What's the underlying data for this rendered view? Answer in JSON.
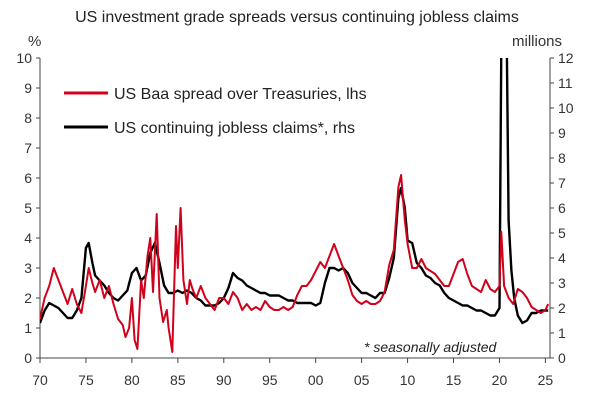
{
  "chart_data": {
    "type": "line",
    "title": "US investment grade spreads versus continuing jobless claims",
    "ylabel_left": "%",
    "ylabel_right": "millions",
    "xlim": [
      1970,
      2025.5
    ],
    "ylim_left": [
      0,
      10
    ],
    "ylim_right": [
      0,
      12
    ],
    "x_ticks": [
      1970,
      1975,
      1980,
      1985,
      1990,
      1995,
      2000,
      2005,
      2010,
      2015,
      2020,
      2025
    ],
    "x_tick_labels": [
      "70",
      "75",
      "80",
      "85",
      "90",
      "95",
      "00",
      "05",
      "10",
      "15",
      "20",
      "25"
    ],
    "y_left_ticks": [
      0,
      1,
      2,
      3,
      4,
      5,
      6,
      7,
      8,
      9,
      10
    ],
    "y_right_ticks": [
      0,
      1,
      2,
      3,
      4,
      5,
      6,
      7,
      8,
      9,
      10,
      11,
      12
    ],
    "grid": false,
    "legend": "top-left",
    "annotation": "* seasonally adjusted",
    "series": [
      {
        "name": "US Baa spread over Treasuries, lhs",
        "axis": "left",
        "color": "#d0021b",
        "x": [
          1970,
          1970.5,
          1971,
          1971.5,
          1972,
          1972.5,
          1973,
          1973.5,
          1974,
          1974.5,
          1975,
          1975.3,
          1975.7,
          1976,
          1976.5,
          1977,
          1977.5,
          1978,
          1978.5,
          1979,
          1979.3,
          1979.7,
          1980,
          1980.3,
          1980.6,
          1981,
          1981.3,
          1981.7,
          1982,
          1982.3,
          1982.7,
          1983,
          1983.4,
          1983.8,
          1984,
          1984.4,
          1984.8,
          1985,
          1985.3,
          1985.6,
          1986,
          1986.3,
          1986.6,
          1987,
          1987.5,
          1988,
          1988.5,
          1989,
          1989.5,
          1990,
          1990.5,
          1991,
          1991.5,
          1992,
          1992.5,
          1993,
          1993.5,
          1994,
          1994.5,
          1995,
          1995.5,
          1996,
          1996.5,
          1997,
          1997.5,
          1998,
          1998.5,
          1999,
          1999.5,
          2000,
          2000.5,
          2001,
          2001.5,
          2002,
          2002.5,
          2003,
          2003.5,
          2004,
          2004.5,
          2005,
          2005.5,
          2006,
          2006.5,
          2007,
          2007.5,
          2008,
          2008.5,
          2009,
          2009.3,
          2009.7,
          2010,
          2010.5,
          2011,
          2011.5,
          2012,
          2012.5,
          2013,
          2013.5,
          2014,
          2014.5,
          2015,
          2015.5,
          2016,
          2016.5,
          2017,
          2017.5,
          2018,
          2018.5,
          2019,
          2019.5,
          2020,
          2020.2,
          2020.5,
          2021,
          2021.5,
          2022,
          2022.5,
          2023,
          2023.5,
          2024,
          2024.5,
          2025,
          2025.3
        ],
        "y": [
          1.3,
          2.0,
          2.4,
          3.0,
          2.6,
          2.2,
          1.8,
          2.3,
          1.8,
          1.5,
          2.4,
          3.0,
          2.5,
          2.2,
          2.6,
          2.0,
          2.4,
          1.8,
          1.3,
          1.1,
          0.7,
          1.0,
          2.0,
          0.6,
          0.3,
          2.6,
          2.0,
          3.4,
          4.0,
          2.2,
          4.8,
          2.0,
          1.2,
          1.6,
          1.0,
          0.2,
          4.4,
          3.0,
          5.0,
          2.6,
          1.8,
          2.6,
          2.3,
          2.0,
          2.4,
          2.0,
          1.8,
          1.6,
          2.0,
          2.0,
          1.8,
          2.2,
          2.0,
          1.6,
          1.8,
          1.6,
          1.7,
          1.6,
          1.9,
          1.7,
          1.6,
          1.6,
          1.7,
          1.6,
          1.7,
          2.1,
          2.4,
          2.4,
          2.6,
          2.9,
          3.2,
          3.0,
          3.4,
          3.8,
          3.4,
          3.0,
          2.6,
          2.1,
          1.9,
          1.8,
          1.9,
          1.8,
          1.8,
          1.9,
          2.2,
          3.1,
          3.6,
          5.7,
          6.1,
          4.6,
          3.8,
          3.0,
          3.0,
          3.3,
          3.0,
          2.9,
          2.8,
          2.6,
          2.4,
          2.4,
          2.8,
          3.2,
          3.3,
          2.8,
          2.4,
          2.3,
          2.2,
          2.6,
          2.3,
          2.2,
          2.4,
          4.2,
          2.4,
          2.0,
          1.8,
          2.3,
          2.2,
          2.0,
          1.7,
          1.6,
          1.5,
          1.6,
          1.8
        ]
      },
      {
        "name": "US continuing jobless claims*, rhs",
        "axis": "right",
        "color": "#000000",
        "x": [
          1970,
          1970.5,
          1971,
          1971.5,
          1972,
          1972.5,
          1973,
          1973.5,
          1974,
          1974.5,
          1975,
          1975.3,
          1975.7,
          1976,
          1976.5,
          1977,
          1977.5,
          1978,
          1978.5,
          1979,
          1979.5,
          1980,
          1980.5,
          1981,
          1981.5,
          1982,
          1982.5,
          1983,
          1983.5,
          1984,
          1984.5,
          1985,
          1985.5,
          1986,
          1986.5,
          1987,
          1987.5,
          1988,
          1988.5,
          1989,
          1989.5,
          1990,
          1990.5,
          1991,
          1991.5,
          1992,
          1992.5,
          1993,
          1993.5,
          1994,
          1994.5,
          1995,
          1995.5,
          1996,
          1996.5,
          1997,
          1997.5,
          1998,
          1998.5,
          1999,
          1999.5,
          2000,
          2000.5,
          2001,
          2001.5,
          2002,
          2002.5,
          2003,
          2003.5,
          2004,
          2004.5,
          2005,
          2005.5,
          2006,
          2006.5,
          2007,
          2007.5,
          2008,
          2008.5,
          2009,
          2009.3,
          2009.7,
          2010,
          2010.5,
          2011,
          2011.5,
          2012,
          2012.5,
          2013,
          2013.5,
          2014,
          2014.5,
          2015,
          2015.5,
          2016,
          2016.5,
          2017,
          2017.5,
          2018,
          2018.5,
          2019,
          2019.5,
          2020,
          2020.2,
          2020.35,
          2020.5,
          2020.8,
          2021,
          2021.3,
          2021.6,
          2022,
          2022.5,
          2023,
          2023.5,
          2024,
          2024.5,
          2025,
          2025.3
        ],
        "y": [
          1.4,
          1.9,
          2.2,
          2.1,
          2.0,
          1.8,
          1.6,
          1.6,
          1.9,
          2.4,
          4.4,
          4.6,
          3.8,
          3.3,
          3.1,
          2.9,
          2.6,
          2.4,
          2.3,
          2.5,
          2.7,
          3.4,
          3.6,
          3.1,
          3.3,
          4.2,
          4.6,
          3.8,
          2.9,
          2.6,
          2.6,
          2.7,
          2.6,
          2.7,
          2.6,
          2.4,
          2.3,
          2.1,
          2.1,
          2.1,
          2.2,
          2.4,
          2.8,
          3.4,
          3.2,
          3.1,
          2.9,
          2.8,
          2.7,
          2.6,
          2.6,
          2.5,
          2.5,
          2.5,
          2.4,
          2.3,
          2.3,
          2.2,
          2.2,
          2.2,
          2.2,
          2.1,
          2.2,
          3.0,
          3.6,
          3.6,
          3.5,
          3.6,
          3.4,
          3.0,
          2.8,
          2.6,
          2.6,
          2.5,
          2.4,
          2.6,
          2.6,
          3.2,
          4.0,
          6.4,
          6.8,
          6.0,
          4.7,
          4.6,
          3.8,
          3.6,
          3.3,
          3.2,
          3.0,
          2.9,
          2.6,
          2.4,
          2.3,
          2.2,
          2.1,
          2.1,
          2.0,
          1.9,
          1.9,
          1.8,
          1.7,
          1.7,
          2.0,
          12.5,
          24.0,
          16.0,
          12.5,
          5.5,
          3.5,
          2.4,
          1.7,
          1.4,
          1.5,
          1.8,
          1.8,
          1.9,
          1.9,
          1.9
        ]
      }
    ]
  }
}
